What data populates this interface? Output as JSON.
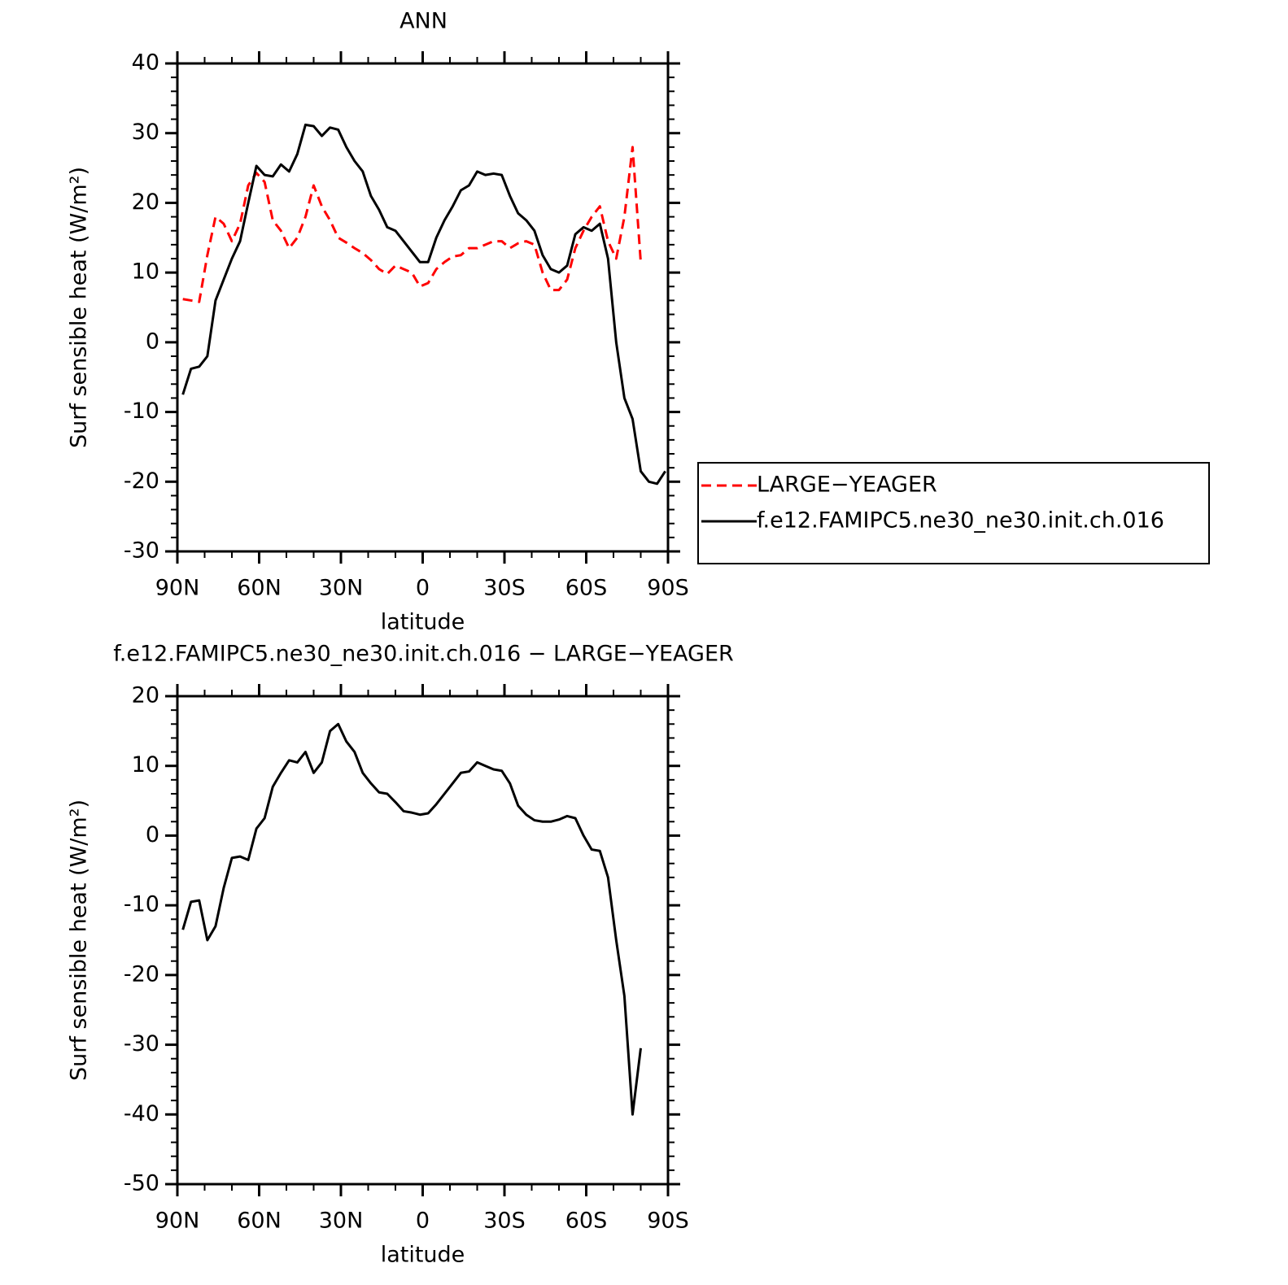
{
  "chart_data": [
    {
      "type": "line",
      "title": "ANN",
      "xlabel": "latitude",
      "ylabel": "Surf sensible heat (W/m²)",
      "x": [
        88,
        85,
        82,
        79,
        76,
        73,
        70,
        67,
        64,
        61,
        58,
        55,
        52,
        49,
        46,
        43,
        40,
        37,
        34,
        31,
        28,
        25,
        22,
        19,
        16,
        13,
        10,
        7,
        4,
        1,
        -2,
        -5,
        -8,
        -11,
        -14,
        -17,
        -20,
        -23,
        -26,
        -29,
        -32,
        -35,
        -38,
        -41,
        -44,
        -47,
        -50,
        -53,
        -56,
        -59,
        -62,
        -65,
        -68,
        -71,
        -74,
        -77,
        -80,
        -83,
        -86,
        -89
      ],
      "series": [
        {
          "name": "LARGE−YEAGER",
          "color": "#ff0000",
          "linestyle": "dashed",
          "values": [
            6.2,
            6,
            5.8,
            12.5,
            18,
            17,
            14.5,
            17,
            22.5,
            24.3,
            23,
            17.5,
            16,
            13.5,
            15,
            18,
            22.5,
            19.5,
            17.5,
            15,
            14.3,
            13.5,
            12.8,
            11.8,
            10.5,
            9.8,
            11,
            10.5,
            10,
            8,
            8.5,
            10.5,
            11.5,
            12.3,
            12.5,
            13.5,
            13.5,
            14,
            14.5,
            14.5,
            13.5,
            14.2,
            14.5,
            14,
            10,
            7.5,
            7.5,
            9,
            13.5,
            16,
            18,
            19.5,
            14.5,
            12,
            18,
            28,
            11.5,
            null,
            null,
            null
          ]
        },
        {
          "name": "f.e12.FAMIPC5.ne30_ne30.init.ch.016",
          "color": "#000000",
          "linestyle": "solid",
          "values": [
            -7.5,
            -3.8,
            -3.5,
            -2,
            6,
            9,
            12,
            14.5,
            20,
            25.3,
            24,
            23.8,
            25.5,
            24.5,
            27,
            31.2,
            31,
            29.6,
            30.8,
            30.5,
            28,
            26,
            24.5,
            21,
            19,
            16.5,
            16,
            14.5,
            13,
            11.5,
            11.5,
            15,
            17.5,
            19.5,
            21.8,
            22.5,
            24.5,
            24,
            24.2,
            24,
            21,
            18.5,
            17.5,
            16,
            12.5,
            10.5,
            10,
            11,
            15.5,
            16.5,
            16,
            17,
            12,
            0,
            -8,
            -11,
            -18.5,
            -20,
            -20.3,
            -18.5
          ]
        }
      ],
      "xlim": [
        90,
        -90
      ],
      "xticks": [
        {
          "value": 90,
          "label": "90N"
        },
        {
          "value": 60,
          "label": "60N"
        },
        {
          "value": 30,
          "label": "30N"
        },
        0,
        {
          "value": -30,
          "label": "30S"
        },
        {
          "value": -60,
          "label": "60S"
        },
        {
          "value": -90,
          "label": "90S"
        }
      ],
      "ylim": [
        -30,
        40
      ],
      "yticks": [
        -30,
        -20,
        -10,
        0,
        10,
        20,
        30,
        40
      ],
      "legend": "right"
    },
    {
      "type": "line",
      "title": "f.e12.FAMIPC5.ne30_ne30.init.ch.016 − LARGE−YEAGER",
      "xlabel": "latitude",
      "ylabel": "Surf sensible heat (W/m²)",
      "x": [
        88,
        85,
        82,
        79,
        76,
        73,
        70,
        67,
        64,
        61,
        58,
        55,
        52,
        49,
        46,
        43,
        40,
        37,
        34,
        31,
        28,
        25,
        22,
        19,
        16,
        13,
        10,
        7,
        4,
        1,
        -2,
        -5,
        -8,
        -11,
        -14,
        -17,
        -20,
        -23,
        -26,
        -29,
        -32,
        -35,
        -38,
        -41,
        -44,
        -47,
        -50,
        -53,
        -56,
        -59,
        -62,
        -65,
        -68,
        -71,
        -74,
        -77,
        -80,
        -83,
        -86,
        -89
      ],
      "series": [
        {
          "color": "#000000",
          "linestyle": "solid",
          "values": [
            -13.5,
            -9.5,
            -9.3,
            -15,
            -13,
            -7.5,
            -3.2,
            -3,
            -3.5,
            1,
            2.5,
            7,
            9,
            10.8,
            10.5,
            12,
            9,
            10.5,
            15,
            16,
            13.5,
            12,
            9,
            7.5,
            6.2,
            6,
            4.8,
            3.5,
            3.3,
            3,
            3.2,
            4.5,
            6,
            7.5,
            9,
            9.2,
            10.5,
            10,
            9.5,
            9.3,
            7.5,
            4.3,
            3,
            2.2,
            2,
            2,
            2.3,
            2.8,
            2.5,
            0,
            -2,
            -2.2,
            -6,
            -15,
            -23,
            -40,
            -30.5,
            null,
            null,
            null
          ]
        }
      ],
      "xlim": [
        90,
        -90
      ],
      "xticks": [
        {
          "value": 90,
          "label": "90N"
        },
        {
          "value": 60,
          "label": "60N"
        },
        {
          "value": 30,
          "label": "30N"
        },
        0,
        {
          "value": -30,
          "label": "30S"
        },
        {
          "value": -60,
          "label": "60S"
        },
        {
          "value": -90,
          "label": "90S"
        }
      ],
      "ylim": [
        -50,
        20
      ],
      "yticks": [
        -50,
        -40,
        -30,
        -20,
        -10,
        0,
        10,
        20
      ]
    }
  ]
}
